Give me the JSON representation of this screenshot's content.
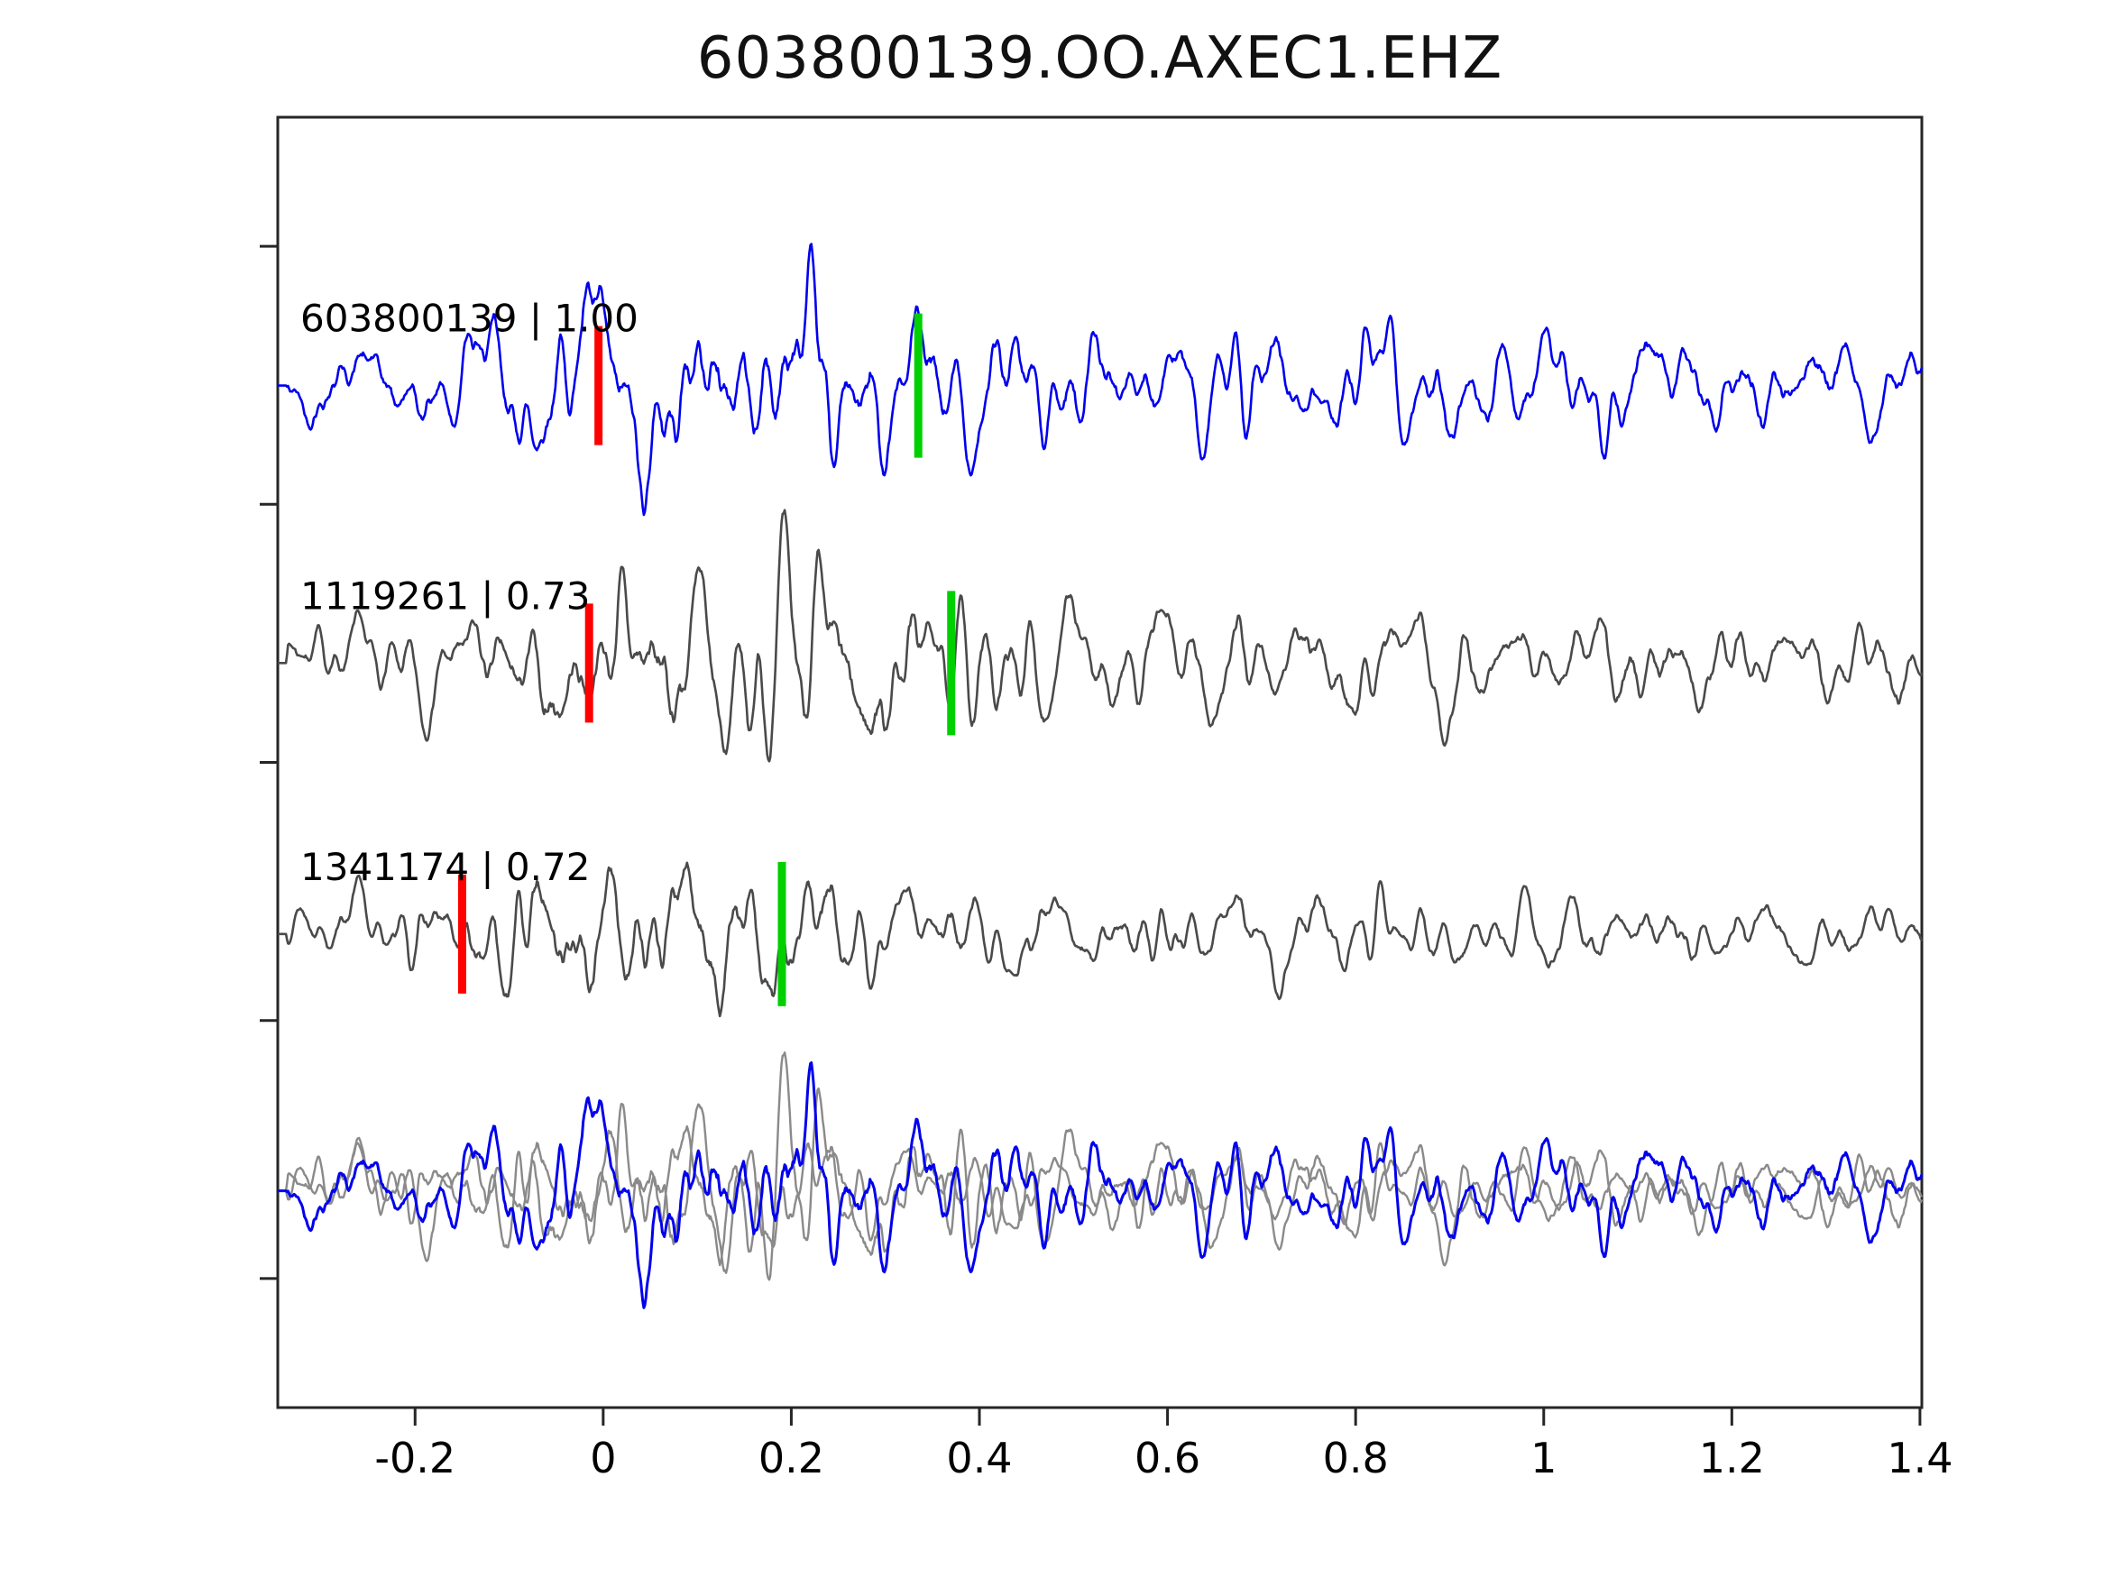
{
  "chart_data": {
    "type": "line",
    "title": "603800139.OO.AXEC1.EHZ",
    "xlabel": "",
    "ylabel": "",
    "xlim": [
      -0.346,
      1.402
    ],
    "x_ticks": [
      -0.2,
      0,
      0.2,
      0.4,
      0.6,
      0.8,
      1,
      1.2,
      1.4
    ],
    "x_tick_labels": [
      "-0.2",
      "0",
      "0.2",
      "0.4",
      "0.6",
      "0.8",
      "1",
      "1.2",
      "1.4"
    ],
    "grid": false,
    "legend": "none",
    "background": "#ffffff",
    "axis_color": "#262626",
    "text_color": "#000000",
    "pick_colors": {
      "red": "#ff0000",
      "green": "#00d000"
    },
    "traces": [
      {
        "id": "603800139",
        "label": "603800139 | 1.00",
        "correlation": 1.0,
        "color": "#0000ee",
        "row_frac": 0.208,
        "seed": 42,
        "env": {
          "pre": 0.36,
          "bc": 0.1,
          "bw": 0.16,
          "ca": 0.3,
          "cc": 0.7,
          "cw": 0.55
        },
        "picks": {
          "red": -0.005,
          "green": 0.335
        }
      },
      {
        "id": "1119261",
        "label": "1119261 | 0.73",
        "correlation": 0.73,
        "color": "#4a4a4a",
        "row_frac": 0.423,
        "seed": 7,
        "env": {
          "pre": 0.34,
          "bc": 0.12,
          "bw": 0.18,
          "ca": 0.34,
          "cc": 0.75,
          "cw": 0.55
        },
        "picks": {
          "red": -0.015,
          "green": 0.37
        }
      },
      {
        "id": "1341174",
        "label": "1341174 | 0.72",
        "correlation": 0.72,
        "color": "#4a4a4a",
        "row_frac": 0.633,
        "seed": 13,
        "env": {
          "pre": 0.3,
          "bc": 0.06,
          "bw": 0.16,
          "ca": 0.22,
          "cc": 0.6,
          "cw": 0.45
        },
        "picks": {
          "red": -0.15,
          "green": 0.19
        }
      }
    ],
    "overlay": {
      "row_frac": 0.832,
      "blue_trace": "603800139",
      "gray_traces": [
        "1119261",
        "1341174"
      ],
      "blue_color": "#0000ee",
      "gray_color": "#8a8a8a"
    }
  }
}
